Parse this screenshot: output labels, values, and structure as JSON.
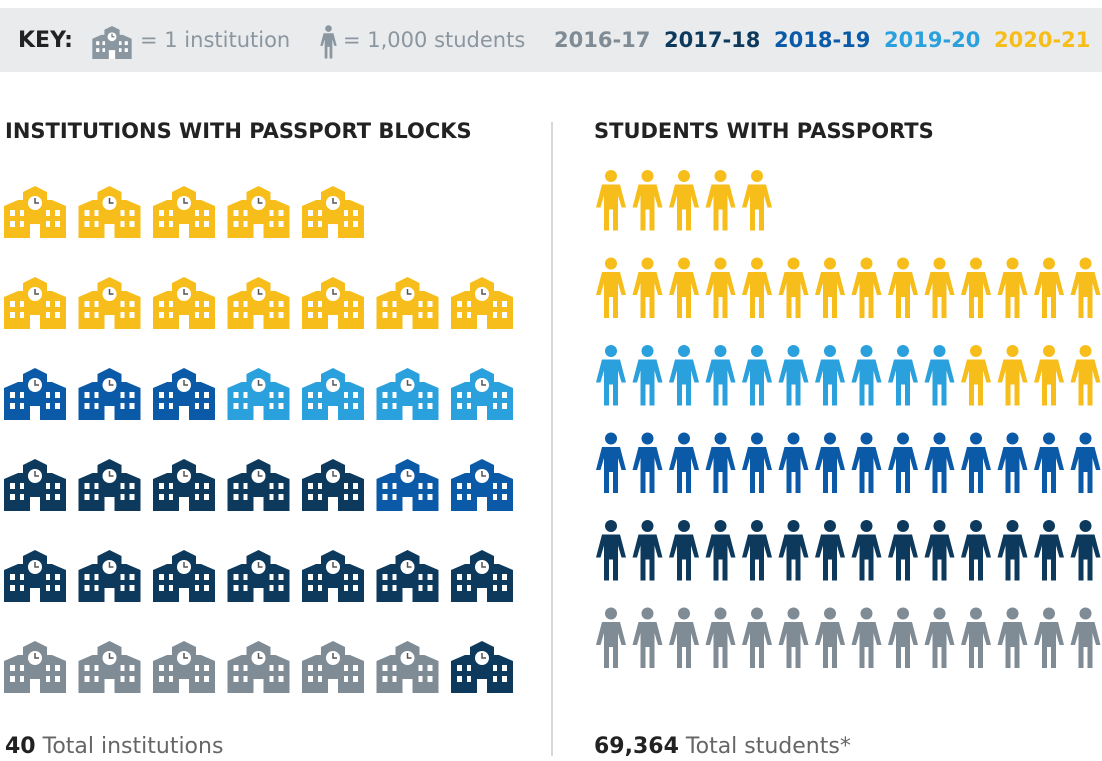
{
  "key": {
    "label": "KEY:",
    "institution": "= 1 institution",
    "students": "= 1,000 students",
    "years": [
      {
        "name": "2016-17",
        "color": "#7f8b95"
      },
      {
        "name": "2017-18",
        "color": "#0d3a5c"
      },
      {
        "name": "2018-19",
        "color": "#0a5aa8"
      },
      {
        "name": "2019-20",
        "color": "#2aa0dc"
      },
      {
        "name": "2020-21",
        "color": "#f7be1b"
      }
    ]
  },
  "institutions": {
    "title": "INSTITUTIONS WITH PASSPORT BLOCKS",
    "counts": [
      6,
      13,
      5,
      4,
      12
    ],
    "total": 40,
    "total_label": "Total institutions"
  },
  "students": {
    "title": "STUDENTS WITH PASSPORTS",
    "counts": [
      14,
      14,
      14,
      10,
      23
    ],
    "total": "69,364",
    "total_label": "Total students*"
  }
}
